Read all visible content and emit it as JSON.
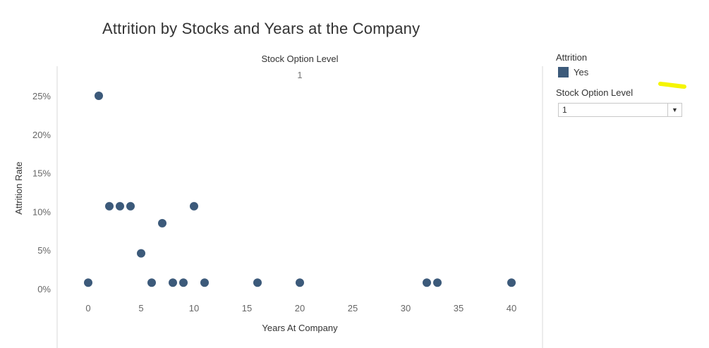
{
  "title": "Attrition by Stocks and Years at the Company",
  "legend": {
    "title": "Attrition",
    "items": [
      {
        "label": "Yes",
        "color": "#3c5a7a"
      }
    ]
  },
  "filter": {
    "title": "Stock Option Level",
    "selected": "1"
  },
  "annotation_color": "#f5f500",
  "chart_data": {
    "type": "scatter",
    "title": "Attrition by Stocks and Years at the Company",
    "column_header": "Stock Option Level",
    "column_value": "1",
    "xlabel": "Years At Company",
    "ylabel": "Attrition Rate",
    "xlim": [
      -4,
      42
    ],
    "ylim": [
      -1.5,
      27.5
    ],
    "xticks": [
      0,
      5,
      10,
      15,
      20,
      25,
      30,
      35,
      40
    ],
    "yticks": [
      0,
      5,
      10,
      15,
      20,
      25
    ],
    "ytick_labels": [
      "0%",
      "5%",
      "10%",
      "15%",
      "20%",
      "25%"
    ],
    "grid": false,
    "legend_position": "right",
    "series": [
      {
        "name": "Yes",
        "color": "#3c5a7a",
        "points": [
          {
            "x": 0,
            "y": 0.8
          },
          {
            "x": 1,
            "y": 25.0
          },
          {
            "x": 2,
            "y": 10.7
          },
          {
            "x": 3,
            "y": 10.7
          },
          {
            "x": 4,
            "y": 10.7
          },
          {
            "x": 5,
            "y": 4.6
          },
          {
            "x": 6,
            "y": 0.8
          },
          {
            "x": 7,
            "y": 8.5
          },
          {
            "x": 8,
            "y": 0.8
          },
          {
            "x": 9,
            "y": 0.8
          },
          {
            "x": 10,
            "y": 10.7
          },
          {
            "x": 11,
            "y": 0.8
          },
          {
            "x": 16,
            "y": 0.8
          },
          {
            "x": 20,
            "y": 0.8
          },
          {
            "x": 32,
            "y": 0.8
          },
          {
            "x": 33,
            "y": 0.8
          },
          {
            "x": 40,
            "y": 0.8
          }
        ]
      }
    ]
  }
}
